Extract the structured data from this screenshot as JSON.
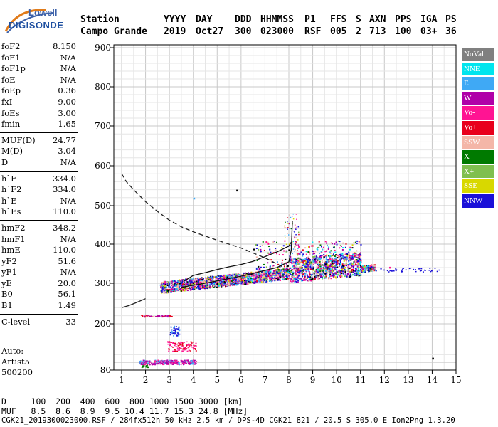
{
  "logo": {
    "line1": "Lowell",
    "line2": "DIGISONDE"
  },
  "header": {
    "labels": [
      "Station",
      "YYYY",
      "DAY",
      "DDD",
      "HHMMSS",
      "P1",
      "FFS",
      "S",
      "AXN",
      "PPS",
      "IGA",
      "PS"
    ],
    "values": [
      "Campo Grande",
      "2019",
      "Oct27",
      "300",
      "023000",
      "RSF",
      "005",
      "2",
      "713",
      "100",
      "03+",
      "36"
    ]
  },
  "params": [
    {
      "key": "foF2",
      "value": "8.150"
    },
    {
      "key": "foF1",
      "value": "N/A"
    },
    {
      "key": "foF1p",
      "value": "N/A"
    },
    {
      "key": "foE",
      "value": "N/A"
    },
    {
      "key": "foEp",
      "value": "0.36"
    },
    {
      "key": "fxI",
      "value": "9.00"
    },
    {
      "key": "foEs",
      "value": "3.00"
    },
    {
      "key": "fmin",
      "value": "1.65"
    },
    {
      "sep": true
    },
    {
      "key": "MUF(D)",
      "value": "24.77"
    },
    {
      "key": "M(D)",
      "value": "3.04"
    },
    {
      "key": "D",
      "value": "N/A"
    },
    {
      "sep": true
    },
    {
      "key": "h`F",
      "value": "334.0"
    },
    {
      "key": "h`F2",
      "value": "334.0"
    },
    {
      "key": "h`E",
      "value": "N/A"
    },
    {
      "key": "h`Es",
      "value": "110.0"
    },
    {
      "sep": true
    },
    {
      "key": "hmF2",
      "value": "348.2"
    },
    {
      "key": "hmF1",
      "value": "N/A"
    },
    {
      "key": "hmE",
      "value": "110.0"
    },
    {
      "key": "yF2",
      "value": "51.6"
    },
    {
      "key": "yF1",
      "value": "N/A"
    },
    {
      "key": "yE",
      "value": "20.0"
    },
    {
      "key": "B0",
      "value": "56.1"
    },
    {
      "key": "B1",
      "value": "1.49"
    },
    {
      "sep": true
    },
    {
      "key": "C-level",
      "value": "33"
    },
    {
      "sep": true
    }
  ],
  "auto": [
    "Auto:",
    "Artist5",
    "500200"
  ],
  "legend": [
    {
      "label": "NoVal",
      "color": "#808080"
    },
    {
      "label": "NNE",
      "color": "#00e5ee"
    },
    {
      "label": "E",
      "color": "#3fa9f5"
    },
    {
      "label": "W",
      "color": "#b000a8"
    },
    {
      "label": "Vo-",
      "color": "#ff1493"
    },
    {
      "label": "Vo+",
      "color": "#e8001c"
    },
    {
      "label": "SSW",
      "color": "#f4b6a8"
    },
    {
      "label": "X-",
      "color": "#007a00"
    },
    {
      "label": "X+",
      "color": "#7fbf4f"
    },
    {
      "label": "SSE",
      "color": "#d8d800"
    },
    {
      "label": "NNW",
      "color": "#1a10d8"
    }
  ],
  "footer": {
    "d_row": "D     100  200  400  600  800 1000 1500 3000 [km]",
    "muf_row": "MUF   8.5  8.6  8.9  9.5 10.4 11.7 15.3 24.8 [MHz]",
    "info_row": "CGK21_2019300023000.RSF / 284fx512h 50 kHz 2.5 km / DPS-4D CGK21 821 / 20.5 S 305.0 E Ion2Png 1.3.20"
  },
  "chart_data": {
    "type": "scatter",
    "title": "",
    "xlabel": "",
    "ylabel": "",
    "xlim": [
      1,
      15
    ],
    "ylim": [
      80,
      900
    ],
    "x_ticks": [
      "1",
      "2",
      "3",
      "4",
      "5",
      "6",
      "7",
      "8",
      "9",
      "10",
      "11",
      "12",
      "13",
      "14",
      "15"
    ],
    "y_ticks": [
      "80",
      "200",
      "300",
      "400",
      "500",
      "600",
      "700",
      "800",
      "900"
    ],
    "grid": true,
    "profile_line": {
      "name": "",
      "x": [
        3.5,
        4.0,
        4.5,
        5.0,
        5.5,
        6.0,
        6.5,
        7.0,
        7.5,
        8.0,
        8.1,
        8.15
      ],
      "y": [
        290,
        295,
        300,
        306,
        312,
        318,
        325,
        333,
        340,
        355,
        385,
        460
      ]
    },
    "trace_line": {
      "name": "",
      "x": [
        3.6,
        4.0,
        4.5,
        5.0,
        5.5,
        6.0,
        6.5,
        7.0,
        7.5,
        8.0,
        8.1
      ],
      "y": [
        305,
        320,
        327,
        335,
        342,
        348,
        356,
        368,
        380,
        395,
        405
      ]
    },
    "dashed_line": {
      "name": "",
      "x": [
        1.0,
        1.2,
        1.5,
        2.0,
        2.5,
        3.0,
        3.5,
        4.0,
        5.0,
        6.0,
        7.0,
        7.8
      ],
      "y": [
        580,
        560,
        540,
        510,
        485,
        462,
        445,
        432,
        410,
        390,
        365,
        340
      ]
    },
    "low_trace": {
      "name": "",
      "x": [
        1.0,
        1.3,
        1.6,
        2.0
      ],
      "y": [
        240,
        245,
        252,
        262
      ]
    }
  }
}
